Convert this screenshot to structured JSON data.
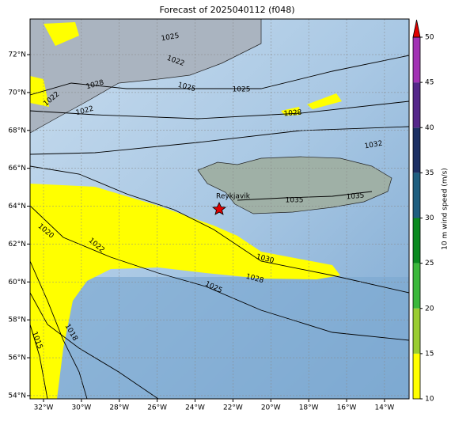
{
  "title": "Forecast of 2025040112 (f048)",
  "map": {
    "lonlim": [
      -32.71,
      -12.7
    ],
    "latlim": [
      53.83,
      73.88
    ],
    "lon_ticks": [
      {
        "value": -32,
        "label": "32°W"
      },
      {
        "value": -30,
        "label": "30°W"
      },
      {
        "value": -28,
        "label": "28°W"
      },
      {
        "value": -26,
        "label": "26°W"
      },
      {
        "value": -24,
        "label": "24°W"
      },
      {
        "value": -22,
        "label": "22°W"
      },
      {
        "value": -20,
        "label": "20°W"
      },
      {
        "value": -18,
        "label": "18°W"
      },
      {
        "value": -16,
        "label": "16°W"
      },
      {
        "value": -14,
        "label": "14°W"
      }
    ],
    "lat_ticks": [
      {
        "value": 72,
        "label": "72°N"
      },
      {
        "value": 70,
        "label": "70°N"
      },
      {
        "value": 68,
        "label": "68°N"
      },
      {
        "value": 66,
        "label": "66°N"
      },
      {
        "value": 64,
        "label": "64°N"
      },
      {
        "value": 62,
        "label": "62°N"
      },
      {
        "value": 60,
        "label": "60°N"
      },
      {
        "value": 58,
        "label": "58°N"
      },
      {
        "value": 56,
        "label": "56°N"
      },
      {
        "value": 54,
        "label": "54°N"
      }
    ],
    "grid": true,
    "city": "Reykjavik",
    "contour_labels": [
      "1025",
      "1022",
      "1028",
      "1025",
      "1025",
      "1022",
      "1022",
      "1028",
      "1032",
      "1035",
      "1035",
      "1020",
      "1022",
      "1030",
      "1028",
      "1025",
      "1018",
      "1015"
    ]
  },
  "colorbar": {
    "label": "10 m wind speed (m/s)",
    "lim": [
      10,
      50
    ],
    "ticks": [
      10,
      15,
      20,
      25,
      30,
      35,
      40,
      45,
      50
    ],
    "colors": [
      "#ffff00",
      "#9acd32",
      "#3cb83c",
      "#0b8a20",
      "#1f5f80",
      "#1c2f63",
      "#55278a",
      "#a232b4"
    ],
    "extend_color": "#e00000"
  }
}
